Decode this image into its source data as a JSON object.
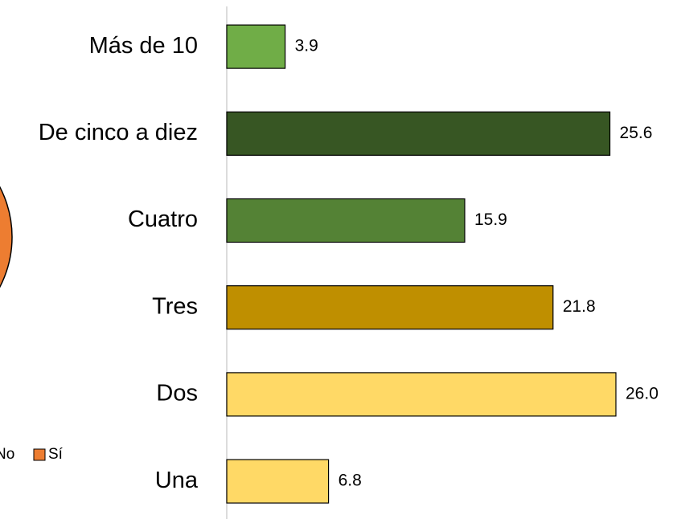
{
  "chart_data": [
    {
      "type": "bar",
      "orientation": "horizontal",
      "categories": [
        "Más de 10",
        "De cinco a diez",
        "Cuatro",
        "Tres",
        "Dos",
        "Una"
      ],
      "values": [
        3.9,
        25.6,
        15.9,
        21.8,
        26.0,
        6.8
      ],
      "value_labels": [
        "3.9",
        "25.6",
        "15.9",
        "21.8",
        "26.0",
        "6.8"
      ],
      "colors": [
        "#70ad47",
        "#375623",
        "#548235",
        "#bf8f00",
        "#ffd966",
        "#ffd966"
      ]
    },
    {
      "type": "pie",
      "series": [
        {
          "name": "No"
        },
        {
          "name": "Sí",
          "color": "#ed7d31"
        }
      ]
    }
  ]
}
